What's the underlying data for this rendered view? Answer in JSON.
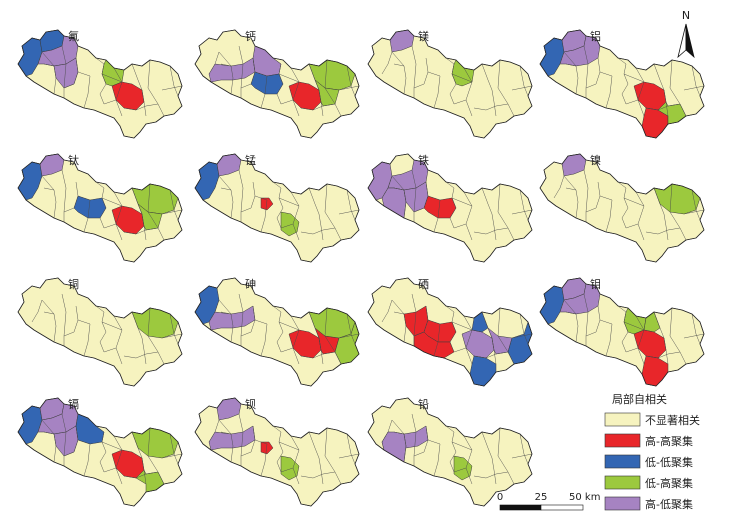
{
  "maps": [
    {
      "element": "氟",
      "clusters": [
        {
          "district": 0,
          "class": 2
        },
        {
          "district": 1,
          "class": 2
        },
        {
          "district": 2,
          "class": 4
        },
        {
          "district": 5,
          "class": 4
        },
        {
          "district": 7,
          "class": 3
        },
        {
          "district": 8,
          "class": 1
        }
      ]
    },
    {
      "element": "钙",
      "clusters": [
        {
          "district": 16,
          "class": 4
        },
        {
          "district": 4,
          "class": 4
        },
        {
          "district": 6,
          "class": 2
        },
        {
          "district": 8,
          "class": 1
        },
        {
          "district": 9,
          "class": 3
        },
        {
          "district": 13,
          "class": 3
        }
      ]
    },
    {
      "element": "镁",
      "clusters": [
        {
          "district": 1,
          "class": 4
        },
        {
          "district": 7,
          "class": 3
        }
      ]
    },
    {
      "element": "铝",
      "clusters": [
        {
          "district": 0,
          "class": 2
        },
        {
          "district": 1,
          "class": 4
        },
        {
          "district": 2,
          "class": 4
        },
        {
          "district": 8,
          "class": 1
        },
        {
          "district": 11,
          "class": 1
        },
        {
          "district": 17,
          "class": 3
        }
      ]
    },
    {
      "element": "钛",
      "clusters": [
        {
          "district": 0,
          "class": 2
        },
        {
          "district": 1,
          "class": 4
        },
        {
          "district": 6,
          "class": 2
        },
        {
          "district": 8,
          "class": 1
        },
        {
          "district": 9,
          "class": 3
        },
        {
          "district": 13,
          "class": 3
        }
      ]
    },
    {
      "element": "锰",
      "clusters": [
        {
          "district": 0,
          "class": 2
        },
        {
          "district": 1,
          "class": 4
        },
        {
          "district": 15,
          "class": 1
        },
        {
          "district": 18,
          "class": 3
        }
      ]
    },
    {
      "element": "铁",
      "clusters": [
        {
          "district": 0,
          "class": 4
        },
        {
          "district": 2,
          "class": 4
        },
        {
          "district": 3,
          "class": 4
        },
        {
          "district": 5,
          "class": 4
        },
        {
          "district": 6,
          "class": 1
        }
      ]
    },
    {
      "element": "镍",
      "clusters": [
        {
          "district": 1,
          "class": 4
        },
        {
          "district": 9,
          "class": 3
        }
      ]
    },
    {
      "element": "铜",
      "clusters": [
        {
          "district": 9,
          "class": 3
        }
      ]
    },
    {
      "element": "砷",
      "clusters": [
        {
          "district": 0,
          "class": 2
        },
        {
          "district": 16,
          "class": 4
        },
        {
          "district": 8,
          "class": 1
        },
        {
          "district": 13,
          "class": 1
        },
        {
          "district": 9,
          "class": 3
        },
        {
          "district": 10,
          "class": 3
        }
      ]
    },
    {
      "element": "硒",
      "clusters": [
        {
          "district": 5,
          "class": 1
        },
        {
          "district": 6,
          "class": 1
        },
        {
          "district": 12,
          "class": 1
        },
        {
          "district": 8,
          "class": 4
        },
        {
          "district": 13,
          "class": 4
        },
        {
          "district": 14,
          "class": 2
        },
        {
          "district": 10,
          "class": 2
        },
        {
          "district": 11,
          "class": 2
        }
      ]
    },
    {
      "element": "钼",
      "clusters": [
        {
          "district": 0,
          "class": 2
        },
        {
          "district": 1,
          "class": 4
        },
        {
          "district": 2,
          "class": 4
        },
        {
          "district": 7,
          "class": 3
        },
        {
          "district": 14,
          "class": 3
        },
        {
          "district": 8,
          "class": 1
        },
        {
          "district": 11,
          "class": 1
        }
      ]
    },
    {
      "element": "镉",
      "clusters": [
        {
          "district": 0,
          "class": 2
        },
        {
          "district": 1,
          "class": 4
        },
        {
          "district": 2,
          "class": 4
        },
        {
          "district": 5,
          "class": 4
        },
        {
          "district": 4,
          "class": 2
        },
        {
          "district": 8,
          "class": 1
        },
        {
          "district": 9,
          "class": 3
        },
        {
          "district": 17,
          "class": 3
        }
      ]
    },
    {
      "element": "钡",
      "clusters": [
        {
          "district": 1,
          "class": 4
        },
        {
          "district": 16,
          "class": 4
        },
        {
          "district": 15,
          "class": 1
        },
        {
          "district": 18,
          "class": 3
        }
      ]
    },
    {
      "element": "铅",
      "clusters": [
        {
          "district": 16,
          "class": 4
        },
        {
          "district": 3,
          "class": 4
        },
        {
          "district": 18,
          "class": 3
        }
      ]
    }
  ],
  "legend": {
    "title": "局部自相关",
    "items": [
      {
        "label": "不显著相关",
        "color": "#f6f3bf"
      },
      {
        "label": "高-高聚集",
        "color": "#e8262a"
      },
      {
        "label": "低-低聚集",
        "color": "#3366b3"
      },
      {
        "label": "低-高聚集",
        "color": "#9cc93e"
      },
      {
        "label": "高-低聚集",
        "color": "#a683c2"
      }
    ]
  },
  "scale_bar": {
    "ticks": [
      "0",
      "25",
      "50 km"
    ]
  },
  "north_arrow": {
    "label": "N",
    "icon": "north-arrow-icon"
  }
}
